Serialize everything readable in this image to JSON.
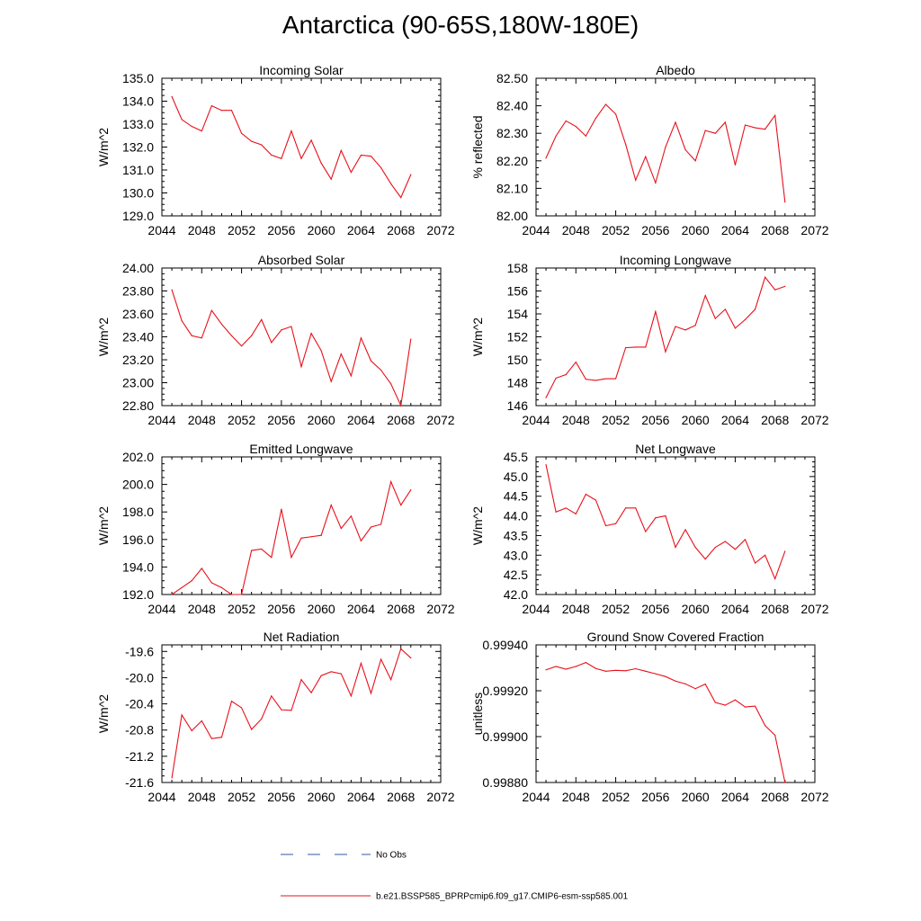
{
  "page": {
    "title": "Antarctica (90-65S,180W-180E)"
  },
  "colors": {
    "model_line": "#e8101a",
    "obs_line": "#3355aa",
    "axis": "#000000"
  },
  "legend": {
    "entries": [
      {
        "label": "No Obs",
        "style": "dashed",
        "color": "#3355aa"
      },
      {
        "label": "b.e21.BSSP585_BPRPcmip6.f09_g17.CMIP6-esm-ssp585.001",
        "style": "solid",
        "color": "#e8101a"
      }
    ]
  },
  "chart_data": [
    {
      "type": "line",
      "title": "Incoming Solar",
      "ylabel": "W/m^2",
      "xlim": [
        2044,
        2072
      ],
      "xticks": [
        "2044",
        "2048",
        "2052",
        "2056",
        "2060",
        "2064",
        "2068",
        "2072"
      ],
      "ylim": [
        129.0,
        135.0
      ],
      "yticks": [
        "129.0",
        "130.0",
        "131.0",
        "132.0",
        "133.0",
        "134.0",
        "135.0"
      ],
      "series": [
        {
          "x": [
            2045,
            2046,
            2047,
            2048,
            2049,
            2050,
            2051,
            2052,
            2053,
            2054,
            2055,
            2056,
            2057,
            2058,
            2059,
            2060,
            2061,
            2062,
            2063,
            2064,
            2065,
            2066,
            2067,
            2068,
            2069
          ],
          "values": [
            134.2,
            133.2,
            132.9,
            132.7,
            133.8,
            133.6,
            133.6,
            132.6,
            132.25,
            132.1,
            131.65,
            131.5,
            132.7,
            131.5,
            132.3,
            131.3,
            130.6,
            131.85,
            130.9,
            131.65,
            131.6,
            131.1,
            130.4,
            129.8,
            130.8
          ]
        }
      ]
    },
    {
      "type": "line",
      "title": "Albedo",
      "ylabel": "% reflected",
      "xlim": [
        2044,
        2072
      ],
      "xticks": [
        "2044",
        "2048",
        "2052",
        "2056",
        "2060",
        "2064",
        "2068",
        "2072"
      ],
      "ylim": [
        82.0,
        82.5
      ],
      "yticks": [
        "82.00",
        "82.10",
        "82.20",
        "82.30",
        "82.40",
        "82.50"
      ],
      "series": [
        {
          "x": [
            2045,
            2046,
            2047,
            2048,
            2049,
            2050,
            2051,
            2052,
            2053,
            2054,
            2055,
            2056,
            2057,
            2058,
            2059,
            2060,
            2061,
            2062,
            2063,
            2064,
            2065,
            2066,
            2067,
            2068,
            2069
          ],
          "values": [
            82.21,
            82.29,
            82.345,
            82.325,
            82.29,
            82.355,
            82.405,
            82.37,
            82.26,
            82.13,
            82.215,
            82.12,
            82.25,
            82.34,
            82.24,
            82.2,
            82.31,
            82.3,
            82.34,
            82.185,
            82.33,
            82.32,
            82.315,
            82.365,
            82.05
          ]
        }
      ]
    },
    {
      "type": "line",
      "title": "Absorbed Solar",
      "ylabel": "W/m^2",
      "xlim": [
        2044,
        2072
      ],
      "xticks": [
        "2044",
        "2048",
        "2052",
        "2056",
        "2060",
        "2064",
        "2068",
        "2072"
      ],
      "ylim": [
        22.8,
        24.0
      ],
      "yticks": [
        "22.80",
        "23.00",
        "23.20",
        "23.40",
        "23.60",
        "23.80",
        "24.00"
      ],
      "series": [
        {
          "x": [
            2045,
            2046,
            2047,
            2048,
            2049,
            2050,
            2051,
            2052,
            2053,
            2054,
            2055,
            2056,
            2057,
            2058,
            2059,
            2060,
            2061,
            2062,
            2063,
            2064,
            2065,
            2066,
            2067,
            2068,
            2069
          ],
          "values": [
            23.81,
            23.54,
            23.41,
            23.39,
            23.63,
            23.51,
            23.41,
            23.32,
            23.41,
            23.55,
            23.35,
            23.46,
            23.49,
            23.14,
            23.43,
            23.28,
            23.01,
            23.25,
            23.06,
            23.39,
            23.19,
            23.11,
            22.99,
            22.8,
            23.38
          ]
        }
      ]
    },
    {
      "type": "line",
      "title": "Incoming Longwave",
      "ylabel": "W/m^2",
      "xlim": [
        2044,
        2072
      ],
      "xticks": [
        "2044",
        "2048",
        "2052",
        "2056",
        "2060",
        "2064",
        "2068",
        "2072"
      ],
      "ylim": [
        146,
        158
      ],
      "yticks": [
        "146",
        "148",
        "150",
        "152",
        "154",
        "156",
        "158"
      ],
      "series": [
        {
          "x": [
            2045,
            2046,
            2047,
            2048,
            2049,
            2050,
            2051,
            2052,
            2053,
            2054,
            2055,
            2056,
            2057,
            2058,
            2059,
            2060,
            2061,
            2062,
            2063,
            2064,
            2065,
            2066,
            2067,
            2068,
            2069
          ],
          "values": [
            146.7,
            148.4,
            148.7,
            149.8,
            148.3,
            148.2,
            148.35,
            148.35,
            151.05,
            151.1,
            151.1,
            154.2,
            150.7,
            152.9,
            152.6,
            153.0,
            155.6,
            153.6,
            154.4,
            152.75,
            153.5,
            154.4,
            157.2,
            156.1,
            156.4
          ]
        }
      ]
    },
    {
      "type": "line",
      "title": "Emitted Longwave",
      "ylabel": "W/m^2",
      "xlim": [
        2044,
        2072
      ],
      "xticks": [
        "2044",
        "2048",
        "2052",
        "2056",
        "2060",
        "2064",
        "2068",
        "2072"
      ],
      "ylim": [
        192.0,
        202.0
      ],
      "yticks": [
        "192.0",
        "194.0",
        "196.0",
        "198.0",
        "200.0",
        "202.0"
      ],
      "series": [
        {
          "x": [
            2045,
            2046,
            2047,
            2048,
            2049,
            2050,
            2051,
            2052,
            2053,
            2054,
            2055,
            2056,
            2057,
            2058,
            2059,
            2060,
            2061,
            2062,
            2063,
            2064,
            2065,
            2066,
            2067,
            2068,
            2069
          ],
          "values": [
            192.0,
            192.5,
            193.0,
            193.9,
            192.85,
            192.5,
            192.0,
            192.0,
            195.2,
            195.3,
            194.7,
            198.2,
            194.7,
            196.1,
            196.2,
            196.3,
            198.5,
            196.8,
            197.7,
            195.9,
            196.9,
            197.1,
            200.2,
            198.5,
            199.6
          ]
        }
      ]
    },
    {
      "type": "line",
      "title": "Net Longwave",
      "ylabel": "W/m^2",
      "xlim": [
        2044,
        2072
      ],
      "xticks": [
        "2044",
        "2048",
        "2052",
        "2056",
        "2060",
        "2064",
        "2068",
        "2072"
      ],
      "ylim": [
        42.0,
        45.5
      ],
      "yticks": [
        "42.0",
        "42.5",
        "43.0",
        "43.5",
        "44.0",
        "44.5",
        "45.0",
        "45.5"
      ],
      "series": [
        {
          "x": [
            2045,
            2046,
            2047,
            2048,
            2049,
            2050,
            2051,
            2052,
            2053,
            2054,
            2055,
            2056,
            2057,
            2058,
            2059,
            2060,
            2061,
            2062,
            2063,
            2064,
            2065,
            2066,
            2067,
            2068,
            2069
          ],
          "values": [
            45.3,
            44.1,
            44.2,
            44.05,
            44.55,
            44.4,
            43.75,
            43.8,
            44.2,
            44.2,
            43.6,
            43.95,
            44.0,
            43.2,
            43.65,
            43.2,
            42.9,
            43.2,
            43.35,
            43.15,
            43.4,
            42.8,
            43.0,
            42.4,
            43.1
          ]
        }
      ]
    },
    {
      "type": "line",
      "title": "Net Radiation",
      "ylabel": "W/m^2",
      "xlim": [
        2044,
        2072
      ],
      "xticks": [
        "2044",
        "2048",
        "2052",
        "2056",
        "2060",
        "2064",
        "2068",
        "2072"
      ],
      "ylim": [
        -21.6,
        -19.5
      ],
      "yticks": [
        "-21.6",
        "-21.2",
        "-20.8",
        "-20.4",
        "-20.0",
        "-19.6"
      ],
      "series": [
        {
          "x": [
            2045,
            2046,
            2047,
            2048,
            2049,
            2050,
            2051,
            2052,
            2053,
            2054,
            2055,
            2056,
            2057,
            2058,
            2059,
            2060,
            2061,
            2062,
            2063,
            2064,
            2065,
            2066,
            2067,
            2068,
            2069
          ],
          "values": [
            -21.53,
            -20.57,
            -20.81,
            -20.66,
            -20.93,
            -20.91,
            -20.36,
            -20.46,
            -20.79,
            -20.63,
            -20.28,
            -20.49,
            -20.5,
            -20.03,
            -20.23,
            -19.97,
            -19.91,
            -19.94,
            -20.28,
            -19.78,
            -20.24,
            -19.72,
            -20.03,
            -19.56,
            -19.7
          ]
        }
      ]
    },
    {
      "type": "line",
      "title": "Ground Snow Covered Fraction",
      "ylabel": "unitless",
      "xlim": [
        2044,
        2072
      ],
      "xticks": [
        "2044",
        "2048",
        "2052",
        "2056",
        "2060",
        "2064",
        "2068",
        "2072"
      ],
      "ylim": [
        0.9988,
        0.9994
      ],
      "yticks": [
        "0.99880",
        "0.99900",
        "0.99920",
        "0.99940"
      ],
      "series": [
        {
          "x": [
            2045,
            2046,
            2047,
            2048,
            2049,
            2050,
            2051,
            2052,
            2053,
            2054,
            2055,
            2056,
            2057,
            2058,
            2059,
            2060,
            2061,
            2062,
            2063,
            2064,
            2065,
            2066,
            2067,
            2068,
            2069
          ],
          "values": [
            0.999291,
            0.999306,
            0.999294,
            0.999306,
            0.999323,
            0.999297,
            0.999285,
            0.999289,
            0.999287,
            0.999296,
            0.999285,
            0.999274,
            0.999262,
            0.999242,
            0.99923,
            0.999209,
            0.999229,
            0.999149,
            0.999137,
            0.99916,
            0.999129,
            0.999133,
            0.999048,
            0.999006,
            0.9988
          ]
        }
      ]
    }
  ]
}
